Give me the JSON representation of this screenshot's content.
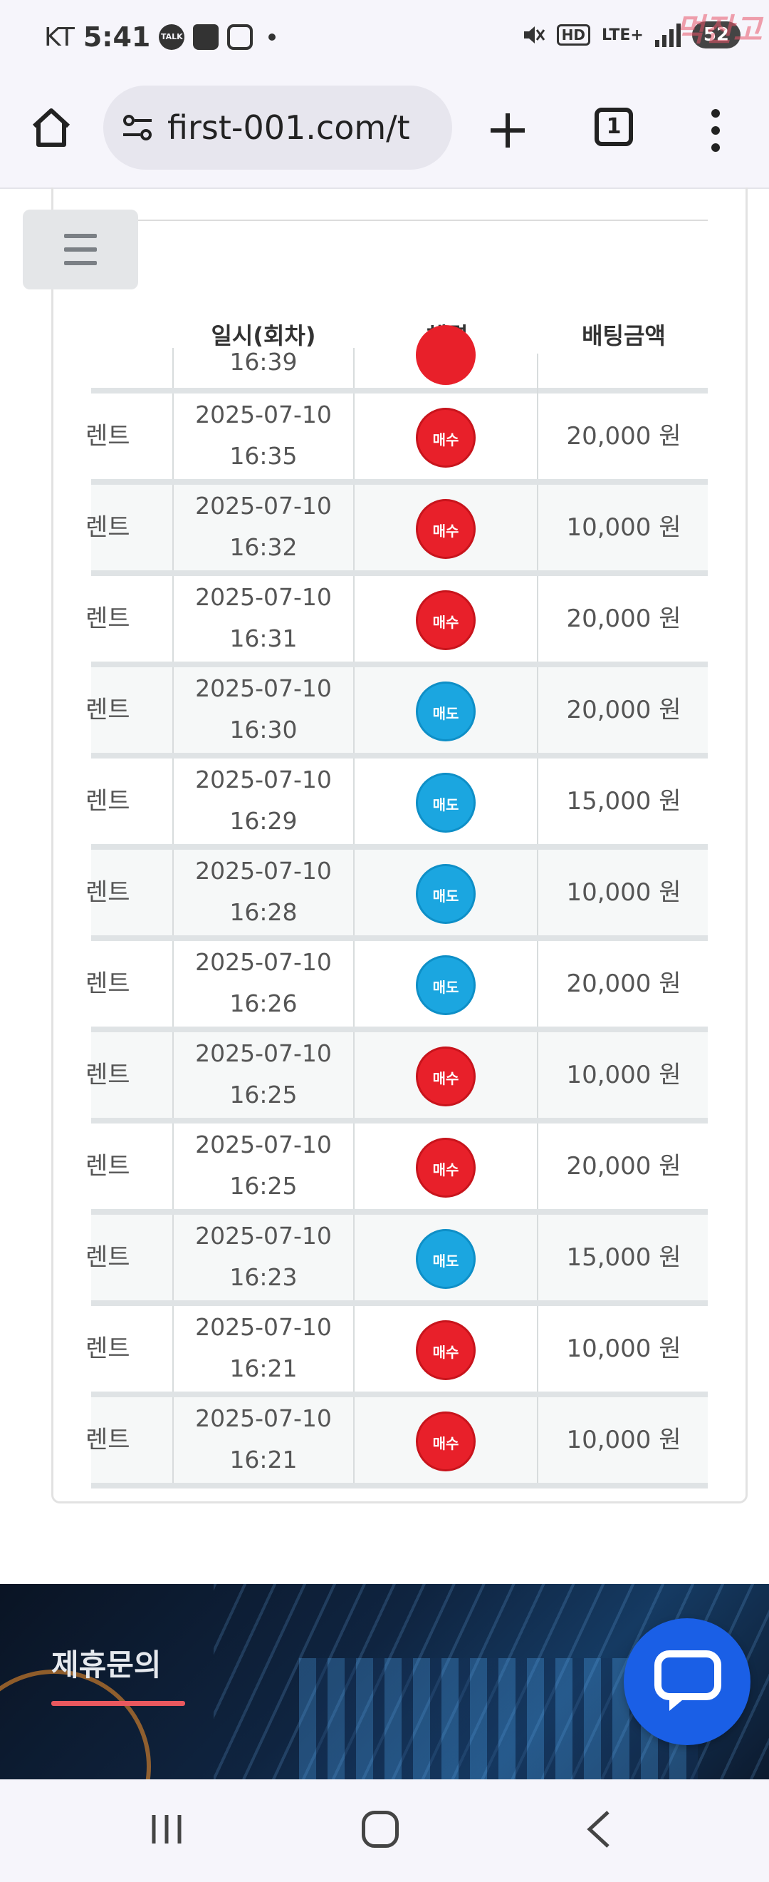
{
  "status_bar": {
    "carrier": "KT",
    "time": "5:41",
    "notification_icons": [
      "talk-icon",
      "shopping-bag-icon",
      "instagram-icon"
    ],
    "talk_label": "TALK",
    "hd_label": "HD",
    "network_label": "LTE+",
    "battery": "52",
    "watermark": "먹잔고"
  },
  "browser": {
    "url": "first-001.com/t",
    "tab_count": "1"
  },
  "table": {
    "headers": {
      "datetime": "일시(회차)",
      "result": "체결",
      "amount": "배팅금액"
    },
    "partial_row": {
      "time": "16:39",
      "type": "buy"
    },
    "rows": [
      {
        "name": "렌트",
        "date": "2025-07-10",
        "time": "16:35",
        "type": "buy",
        "badge": "매수",
        "amount": "20,000 원"
      },
      {
        "name": "렌트",
        "date": "2025-07-10",
        "time": "16:32",
        "type": "buy",
        "badge": "매수",
        "amount": "10,000 원"
      },
      {
        "name": "렌트",
        "date": "2025-07-10",
        "time": "16:31",
        "type": "buy",
        "badge": "매수",
        "amount": "20,000 원"
      },
      {
        "name": "렌트",
        "date": "2025-07-10",
        "time": "16:30",
        "type": "sell",
        "badge": "매도",
        "amount": "20,000 원"
      },
      {
        "name": "렌트",
        "date": "2025-07-10",
        "time": "16:29",
        "type": "sell",
        "badge": "매도",
        "amount": "15,000 원"
      },
      {
        "name": "렌트",
        "date": "2025-07-10",
        "time": "16:28",
        "type": "sell",
        "badge": "매도",
        "amount": "10,000 원"
      },
      {
        "name": "렌트",
        "date": "2025-07-10",
        "time": "16:26",
        "type": "sell",
        "badge": "매도",
        "amount": "20,000 원"
      },
      {
        "name": "렌트",
        "date": "2025-07-10",
        "time": "16:25",
        "type": "buy",
        "badge": "매수",
        "amount": "10,000 원"
      },
      {
        "name": "렌트",
        "date": "2025-07-10",
        "time": "16:25",
        "type": "buy",
        "badge": "매수",
        "amount": "20,000 원"
      },
      {
        "name": "렌트",
        "date": "2025-07-10",
        "time": "16:23",
        "type": "sell",
        "badge": "매도",
        "amount": "15,000 원"
      },
      {
        "name": "렌트",
        "date": "2025-07-10",
        "time": "16:21",
        "type": "buy",
        "badge": "매수",
        "amount": "10,000 원"
      },
      {
        "name": "렌트",
        "date": "2025-07-10",
        "time": "16:21",
        "type": "buy",
        "badge": "매수",
        "amount": "10,000 원"
      }
    ]
  },
  "footer": {
    "banner_title": "제휴문의"
  },
  "colors": {
    "buy": "#e8202a",
    "sell": "#1ba6e0",
    "chat": "#1a5fe6",
    "underline": "#e9585e"
  }
}
